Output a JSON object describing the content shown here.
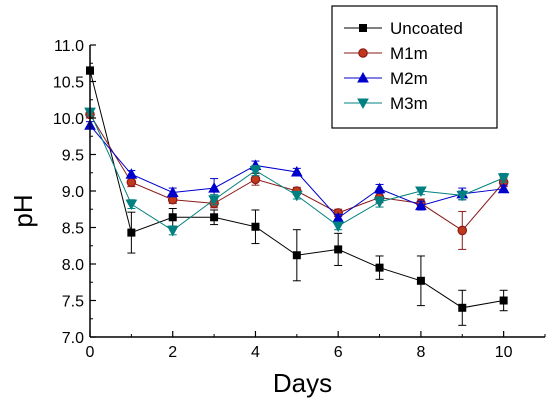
{
  "chart_data": {
    "type": "line",
    "title": "",
    "xlabel": "Days",
    "ylabel": "pH",
    "xlim": [
      0,
      11
    ],
    "ylim": [
      7.0,
      11.0
    ],
    "x_ticks": [
      0,
      2,
      4,
      6,
      8,
      10
    ],
    "y_ticks": [
      7.0,
      7.5,
      8.0,
      8.5,
      9.0,
      9.5,
      10.0,
      10.5,
      11.0
    ],
    "x_ticks_labels": [
      "0",
      "2",
      "4",
      "6",
      "8",
      "10"
    ],
    "y_ticks_labels": [
      "7.0",
      "7.5",
      "8.0",
      "8.5",
      "9.0",
      "9.5",
      "10.0",
      "10.5",
      "11.0"
    ],
    "grid": false,
    "legend_position": "top-right",
    "x": [
      0,
      1,
      2,
      3,
      4,
      5,
      6,
      7,
      8,
      9,
      10
    ],
    "series": [
      {
        "name": "Uncoated",
        "color": "#000000",
        "marker": "square",
        "values": [
          10.65,
          8.43,
          8.64,
          8.64,
          8.51,
          8.12,
          8.2,
          7.95,
          7.77,
          7.4,
          7.5
        ],
        "error": [
          0.05,
          0.28,
          0.12,
          0.1,
          0.23,
          0.35,
          0.22,
          0.16,
          0.34,
          0.24,
          0.14
        ]
      },
      {
        "name": "M1m",
        "color": "#8B1A1A",
        "marker": "circle",
        "values": [
          10.05,
          9.12,
          8.88,
          8.83,
          9.16,
          9.0,
          8.7,
          8.91,
          8.83,
          8.46,
          9.12
        ],
        "error": [
          0.05,
          0.06,
          0.05,
          0.06,
          0.08,
          0.05,
          0.05,
          0.07,
          0.06,
          0.26,
          0.06
        ]
      },
      {
        "name": "M2m",
        "color": "#0000CC",
        "marker": "triangle-up",
        "values": [
          9.9,
          9.23,
          8.98,
          9.04,
          9.35,
          9.26,
          8.63,
          9.03,
          8.8,
          8.96,
          9.03
        ],
        "error": [
          0.05,
          0.05,
          0.06,
          0.13,
          0.06,
          0.05,
          0.05,
          0.06,
          0.06,
          0.08,
          0.05
        ]
      },
      {
        "name": "M3m",
        "color": "#008080",
        "marker": "triangle-down",
        "values": [
          10.08,
          8.82,
          8.46,
          8.88,
          9.28,
          8.94,
          8.52,
          8.85,
          9.0,
          8.94,
          9.18
        ],
        "error": [
          0.05,
          0.06,
          0.06,
          0.07,
          0.07,
          0.05,
          0.05,
          0.07,
          0.05,
          0.06,
          0.06
        ]
      }
    ]
  }
}
